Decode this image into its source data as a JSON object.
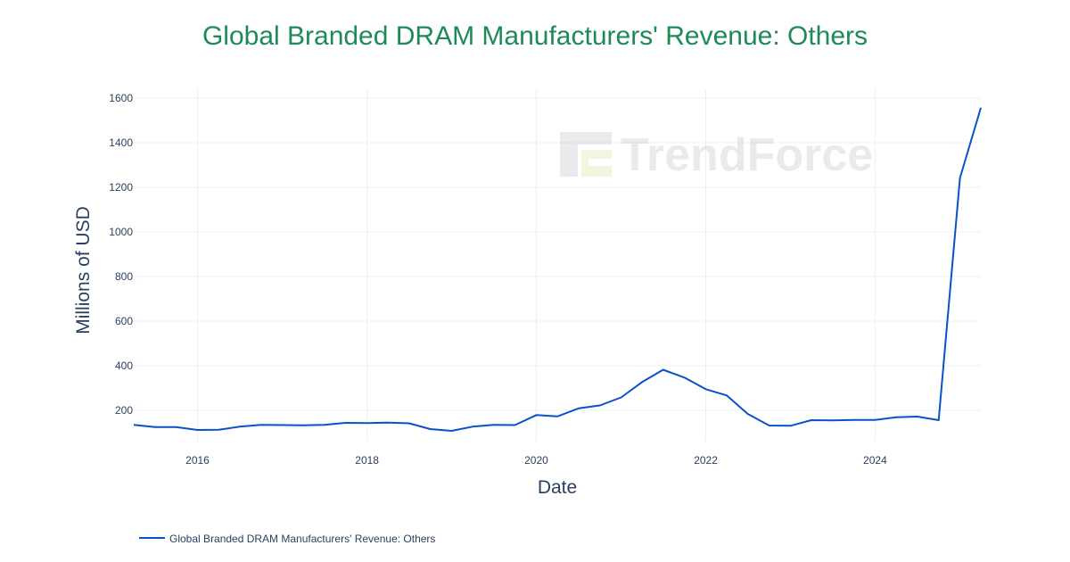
{
  "watermark": {
    "text": "TrendForce",
    "logo": "trendforce-logo-icon"
  },
  "colors": {
    "title": "#1e8a57",
    "line": "#0a52c8",
    "text": "#2a3f5f",
    "grid": "#eef0f3"
  },
  "chart_data": {
    "type": "line",
    "title": "Global Branded DRAM Manufacturers' Revenue: Others",
    "xlabel": "Date",
    "ylabel": "Millions of USD",
    "xlim": [
      "2015-04-01",
      "2025-04-01"
    ],
    "ylim": [
      60,
      1640
    ],
    "x_ticks": [
      "2016",
      "2018",
      "2020",
      "2022",
      "2024"
    ],
    "y_ticks": [
      200,
      400,
      600,
      800,
      1000,
      1200,
      1400,
      1600
    ],
    "grid": true,
    "legend_position": "bottom-left",
    "series": [
      {
        "name": "Global Branded DRAM Manufacturers' Revenue: Others",
        "x": [
          "2015-04-01",
          "2015-07-01",
          "2015-10-01",
          "2016-01-01",
          "2016-04-01",
          "2016-07-01",
          "2016-10-01",
          "2017-01-01",
          "2017-04-01",
          "2017-07-01",
          "2017-10-01",
          "2018-01-01",
          "2018-04-01",
          "2018-07-01",
          "2018-10-01",
          "2019-01-01",
          "2019-04-01",
          "2019-07-01",
          "2019-10-01",
          "2020-01-01",
          "2020-04-01",
          "2020-07-01",
          "2020-10-01",
          "2021-01-01",
          "2021-04-01",
          "2021-07-01",
          "2021-10-01",
          "2022-01-01",
          "2022-04-01",
          "2022-07-01",
          "2022-10-01",
          "2023-01-01",
          "2023-04-01",
          "2023-07-01",
          "2023-10-01",
          "2024-01-01",
          "2024-04-01",
          "2024-07-01",
          "2024-10-01",
          "2025-01-01",
          "2025-04-01"
        ],
        "values": [
          135,
          125,
          125,
          112,
          113,
          127,
          135,
          134,
          133,
          135,
          144,
          143,
          145,
          142,
          116,
          108,
          127,
          135,
          134,
          179,
          173,
          209,
          222,
          258,
          327,
          382,
          347,
          295,
          267,
          184,
          132,
          131,
          156,
          155,
          157,
          157,
          169,
          172,
          156,
          1242,
          1557
        ]
      }
    ]
  }
}
